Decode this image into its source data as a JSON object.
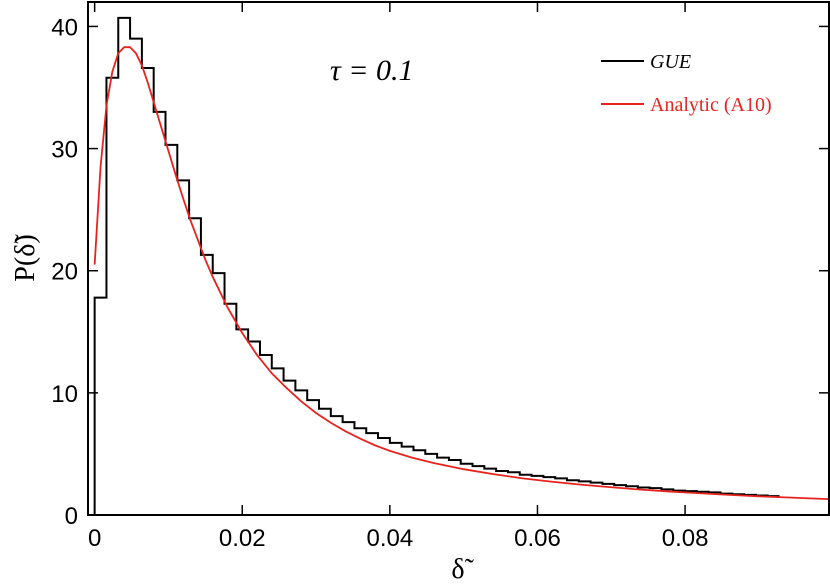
{
  "chart_data": {
    "type": "line",
    "title": "",
    "annotation": "τ = 0.1",
    "xlabel": "δ̃",
    "ylabel": "P(δ̃)",
    "xlim": [
      -0.0009,
      0.0995
    ],
    "ylim": [
      0,
      42
    ],
    "xticks": [
      0,
      0.02,
      0.04,
      0.06,
      0.08
    ],
    "xtick_labels": [
      "0",
      "0.02",
      "0.04",
      "0.06",
      "0.08"
    ],
    "yticks": [
      0,
      10,
      20,
      30,
      40
    ],
    "ytick_labels": [
      "0",
      "10",
      "20",
      "30",
      "40"
    ],
    "legend_position": "top-right",
    "grid": false,
    "series": [
      {
        "name": "GUE",
        "style": "step",
        "color": "#000000",
        "bin_width": 0.0016,
        "bin_start": 0,
        "values": [
          17.8,
          35.8,
          40.7,
          39.0,
          36.6,
          33.0,
          30.3,
          27.4,
          24.3,
          21.3,
          19.8,
          17.3,
          15.2,
          14.2,
          13.1,
          12.0,
          11.0,
          10.2,
          9.4,
          8.7,
          8.1,
          7.6,
          7.1,
          6.7,
          6.3,
          5.9,
          5.6,
          5.3,
          5.0,
          4.7,
          4.5,
          4.2,
          4.0,
          3.8,
          3.6,
          3.5,
          3.3,
          3.2,
          3.1,
          3.0,
          2.85,
          2.75,
          2.65,
          2.55,
          2.45,
          2.35,
          2.25,
          2.2,
          2.1,
          2.0,
          1.95,
          1.9,
          1.85,
          1.75,
          1.7,
          1.65,
          1.6,
          1.55
        ]
      },
      {
        "name": "Analytic (A10)",
        "style": "line",
        "color": "#e8231e",
        "x": [
          0,
          0.0008,
          0.0016,
          0.0024,
          0.0032,
          0.004,
          0.0048,
          0.0056,
          0.0064,
          0.0072,
          0.008,
          0.009,
          0.01,
          0.011,
          0.012,
          0.013,
          0.014,
          0.015,
          0.016,
          0.018,
          0.02,
          0.022,
          0.024,
          0.026,
          0.028,
          0.03,
          0.032,
          0.034,
          0.036,
          0.038,
          0.04,
          0.043,
          0.046,
          0.05,
          0.054,
          0.058,
          0.062,
          0.066,
          0.07,
          0.074,
          0.078,
          0.082,
          0.086,
          0.09,
          0.094,
          0.0995
        ],
        "y": [
          20.5,
          28.5,
          33.5,
          36.3,
          37.8,
          38.3,
          38.3,
          37.8,
          36.8,
          35.4,
          33.8,
          31.8,
          29.8,
          27.8,
          25.9,
          24.1,
          22.5,
          20.9,
          19.5,
          17.0,
          14.9,
          13.1,
          11.6,
          10.4,
          9.3,
          8.35,
          7.55,
          6.85,
          6.25,
          5.7,
          5.25,
          4.7,
          4.25,
          3.75,
          3.35,
          3.0,
          2.72,
          2.48,
          2.27,
          2.08,
          1.92,
          1.78,
          1.65,
          1.53,
          1.43,
          1.3
        ]
      }
    ]
  }
}
